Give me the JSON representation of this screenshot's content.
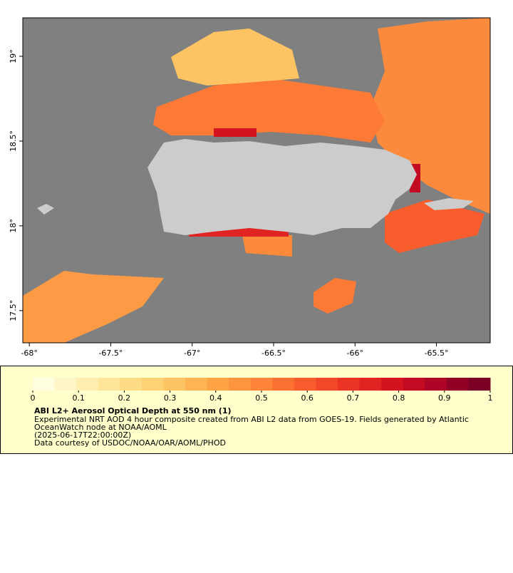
{
  "map": {
    "xlim": [
      -68.04,
      -65.17
    ],
    "ylim": [
      17.31,
      19.227
    ],
    "xticks": [
      {
        "value": -68,
        "label": "-68°"
      },
      {
        "value": -67.5,
        "label": "-67.5°"
      },
      {
        "value": -67,
        "label": "-67°"
      },
      {
        "value": -66.5,
        "label": "-66.5°"
      },
      {
        "value": -66,
        "label": "-66°"
      },
      {
        "value": -65.5,
        "label": "-65.5°"
      }
    ],
    "yticks": [
      {
        "value": 19,
        "label": "19°"
      },
      {
        "value": 18.5,
        "label": "18.5°"
      },
      {
        "value": 18,
        "label": "18°"
      },
      {
        "value": 17.5,
        "label": "17.5°"
      }
    ]
  },
  "colorbar": {
    "range": [
      0,
      1
    ],
    "ticks": [
      0,
      0.1,
      0.2,
      0.3,
      0.4,
      0.5,
      0.6,
      0.7,
      0.8,
      0.9,
      1
    ],
    "colors": [
      "#ffffe0",
      "#fff5c6",
      "#ffeeb0",
      "#fee59a",
      "#fedc86",
      "#fed175",
      "#fec463",
      "#feb452",
      "#fea446",
      "#fd953e",
      "#fd8438",
      "#fc7032",
      "#f95c2d",
      "#f34729",
      "#ea3425",
      "#e02422",
      "#d31420",
      "#c20a23",
      "#ac0326",
      "#930026",
      "#7a0026"
    ]
  },
  "legend": {
    "title": "ABI L2+ Aerosol Optical Depth at 550 nm (1)",
    "lines": [
      "Experimental NRT AOD 4 hour composite created from ABI L2 data from GOES-19. Fields generated by Atlantic",
      "OceanWatch node at NOAA/AOML",
      "(2025-06-17T22:00:00Z)",
      "Data courtesy of USDOC/NOAA/OAR/AOML/PHOD"
    ]
  }
}
